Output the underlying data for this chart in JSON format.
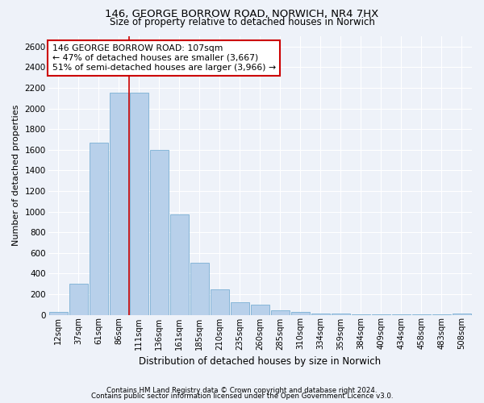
{
  "title1": "146, GEORGE BORROW ROAD, NORWICH, NR4 7HX",
  "title2": "Size of property relative to detached houses in Norwich",
  "xlabel": "Distribution of detached houses by size in Norwich",
  "ylabel": "Number of detached properties",
  "bar_labels": [
    "12sqm",
    "37sqm",
    "61sqm",
    "86sqm",
    "111sqm",
    "136sqm",
    "161sqm",
    "185sqm",
    "210sqm",
    "235sqm",
    "260sqm",
    "285sqm",
    "310sqm",
    "334sqm",
    "359sqm",
    "384sqm",
    "409sqm",
    "434sqm",
    "458sqm",
    "483sqm",
    "508sqm"
  ],
  "bar_values": [
    25,
    300,
    1670,
    2150,
    2150,
    1600,
    970,
    505,
    250,
    125,
    95,
    40,
    30,
    12,
    10,
    4,
    4,
    2,
    1,
    1,
    15
  ],
  "bar_color": "#b8d0ea",
  "bar_edge_color": "#7aafd4",
  "vline_x": 4,
  "vline_color": "#cc0000",
  "annotation_text": "146 GEORGE BORROW ROAD: 107sqm\n← 47% of detached houses are smaller (3,667)\n51% of semi-detached houses are larger (3,966) →",
  "annotation_box_color": "#ffffff",
  "annotation_box_edge": "#cc0000",
  "ylim": [
    0,
    2700
  ],
  "yticks": [
    0,
    200,
    400,
    600,
    800,
    1000,
    1200,
    1400,
    1600,
    1800,
    2000,
    2200,
    2400,
    2600
  ],
  "footer1": "Contains HM Land Registry data © Crown copyright and database right 2024.",
  "footer2": "Contains public sector information licensed under the Open Government Licence v3.0.",
  "bg_color": "#eef2f9",
  "grid_color": "#ffffff"
}
